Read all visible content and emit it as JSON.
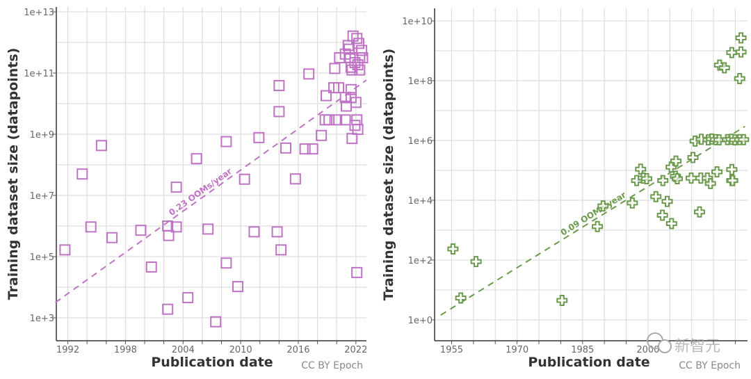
{
  "chart_data": [
    {
      "type": "scatter",
      "marker": "square",
      "color": "#bf73c4",
      "xlabel": "Publication date",
      "ylabel": "Training dataset size (datapoints)",
      "credit": "CC BY Epoch",
      "y_scale": "log",
      "xlim": [
        1990.8,
        2023.1
      ],
      "ylim_log10": [
        2.25,
        13.16
      ],
      "x_ticks": [
        1992,
        1998,
        2004,
        2010,
        2016,
        2022
      ],
      "y_ticks": [
        "1e+3",
        "1e+5",
        "1e+7",
        "1e+9",
        "1e+11",
        "1e+13"
      ],
      "grid": true,
      "trend": {
        "label": "0.23 OOMs/year",
        "slope_ooms_per_year": 0.23,
        "from": [
          1990.7,
          3.5
        ],
        "to": [
          2023.1,
          10.77
        ]
      },
      "points_log10": [
        [
          1991.7,
          5.22
        ],
        [
          1993.5,
          7.7
        ],
        [
          1994.4,
          5.97
        ],
        [
          1995.5,
          8.63
        ],
        [
          1996.6,
          5.62
        ],
        [
          1999.6,
          5.86
        ],
        [
          2000.7,
          4.66
        ],
        [
          2002.4,
          6.0
        ],
        [
          2002.5,
          5.69
        ],
        [
          2003.3,
          5.97
        ],
        [
          2003.3,
          7.27
        ],
        [
          2002.4,
          3.28
        ],
        [
          2004.5,
          3.66
        ],
        [
          2005.4,
          8.2
        ],
        [
          2006.6,
          5.9
        ],
        [
          2007.4,
          2.87
        ],
        [
          2008.5,
          8.76
        ],
        [
          2008.5,
          4.79
        ],
        [
          2009.7,
          4.02
        ],
        [
          2010.4,
          7.53
        ],
        [
          2011.4,
          5.81
        ],
        [
          2011.9,
          8.89
        ],
        [
          2013.8,
          5.81
        ],
        [
          2014.2,
          5.22
        ],
        [
          2014.0,
          10.59
        ],
        [
          2014.0,
          9.74
        ],
        [
          2014.7,
          8.55
        ],
        [
          2015.7,
          7.54
        ],
        [
          2016.7,
          8.52
        ],
        [
          2017.5,
          8.52
        ],
        [
          2017.1,
          10.97
        ],
        [
          2018.4,
          8.96
        ],
        [
          2018.9,
          10.26
        ],
        [
          2018.8,
          9.47
        ],
        [
          2019.2,
          9.47
        ],
        [
          2019.8,
          11.15
        ],
        [
          2019.7,
          10.52
        ],
        [
          2020.2,
          10.52
        ],
        [
          2020.0,
          9.47
        ],
        [
          2020.3,
          11.5
        ],
        [
          2020.9,
          9.47
        ],
        [
          2021.0,
          9.92
        ],
        [
          2020.9,
          10.2
        ],
        [
          2021.5,
          10.2
        ],
        [
          2021.5,
          10.46
        ],
        [
          2021.6,
          8.86
        ],
        [
          2022.0,
          10.04
        ],
        [
          2022.1,
          9.47
        ],
        [
          2021.9,
          9.29
        ],
        [
          2022.2,
          9.16
        ],
        [
          2022.1,
          4.48
        ],
        [
          2021.7,
          12.21
        ],
        [
          2022.1,
          12.13
        ],
        [
          2022.3,
          11.97
        ],
        [
          2021.2,
          11.9
        ],
        [
          2022.6,
          11.74
        ],
        [
          2020.9,
          11.62
        ],
        [
          2021.4,
          11.5
        ],
        [
          2021.9,
          11.34
        ],
        [
          2022.4,
          11.5
        ],
        [
          2021.5,
          11.19
        ],
        [
          2022.2,
          11.27
        ],
        [
          2021.6,
          11.1
        ],
        [
          2022.4,
          11.1
        ],
        [
          2022.7,
          11.5
        ],
        [
          2021.3,
          11.78
        ]
      ]
    },
    {
      "type": "scatter",
      "marker": "plus",
      "color": "#6b9a4c",
      "xlabel": "Publication date",
      "ylabel": "Training dataset size (datapoints)",
      "credit": "CC BY Epoch",
      "watermark": "新智元",
      "y_scale": "log",
      "xlim": [
        1951.1,
        2022.8
      ],
      "ylim_log10": [
        -0.7,
        10.42
      ],
      "x_ticks": [
        1955,
        1970,
        1985,
        2000
      ],
      "y_ticks": [
        "1e+0",
        "1e+2",
        "1e+4",
        "1e+6",
        "1e+8",
        "1e+10"
      ],
      "grid": true,
      "trend": {
        "label": "0.09 OOMs/year",
        "slope_ooms_per_year": 0.09,
        "from": [
          1952.5,
          0.16
        ],
        "to": [
          2022.2,
          6.47
        ]
      },
      "points_log10": [
        [
          1955.3,
          2.37
        ],
        [
          1957.1,
          0.73
        ],
        [
          1960.6,
          1.95
        ],
        [
          1980.3,
          0.65
        ],
        [
          1988.4,
          3.12
        ],
        [
          1989.7,
          3.81
        ],
        [
          1996.4,
          3.91
        ],
        [
          1998.3,
          5.04
        ],
        [
          1997.4,
          4.66
        ],
        [
          1998.9,
          4.74
        ],
        [
          1999.7,
          4.72
        ],
        [
          2001.8,
          4.12
        ],
        [
          2003.4,
          4.66
        ],
        [
          2003.3,
          3.5
        ],
        [
          2004.4,
          3.96
        ],
        [
          2005.4,
          3.22
        ],
        [
          2005.3,
          5.11
        ],
        [
          2006.4,
          5.31
        ],
        [
          2006.3,
          4.8
        ],
        [
          2006.7,
          4.72
        ],
        [
          2009.9,
          4.74
        ],
        [
          2010.3,
          5.43
        ],
        [
          2011.8,
          3.61
        ],
        [
          2012.1,
          4.74
        ],
        [
          2010.8,
          5.98
        ],
        [
          2012.2,
          6.04
        ],
        [
          2013.6,
          4.74
        ],
        [
          2014.3,
          4.56
        ],
        [
          2015.8,
          4.95
        ],
        [
          2016.4,
          8.52
        ],
        [
          2017.5,
          8.43
        ],
        [
          2019.2,
          5.03
        ],
        [
          2019.2,
          4.66
        ],
        [
          2019.4,
          4.66
        ],
        [
          2019.2,
          8.94
        ],
        [
          2021.3,
          8.96
        ],
        [
          2021.0,
          8.07
        ],
        [
          2021.3,
          9.43
        ],
        [
          2013.8,
          6.02
        ],
        [
          2014.6,
          6.05
        ],
        [
          2015.5,
          6.03
        ],
        [
          2016.3,
          6.02
        ],
        [
          2018.2,
          6.03
        ],
        [
          2019.1,
          6.04
        ],
        [
          2019.9,
          6.02
        ],
        [
          2021.0,
          6.03
        ],
        [
          2021.9,
          6.03
        ]
      ]
    }
  ]
}
